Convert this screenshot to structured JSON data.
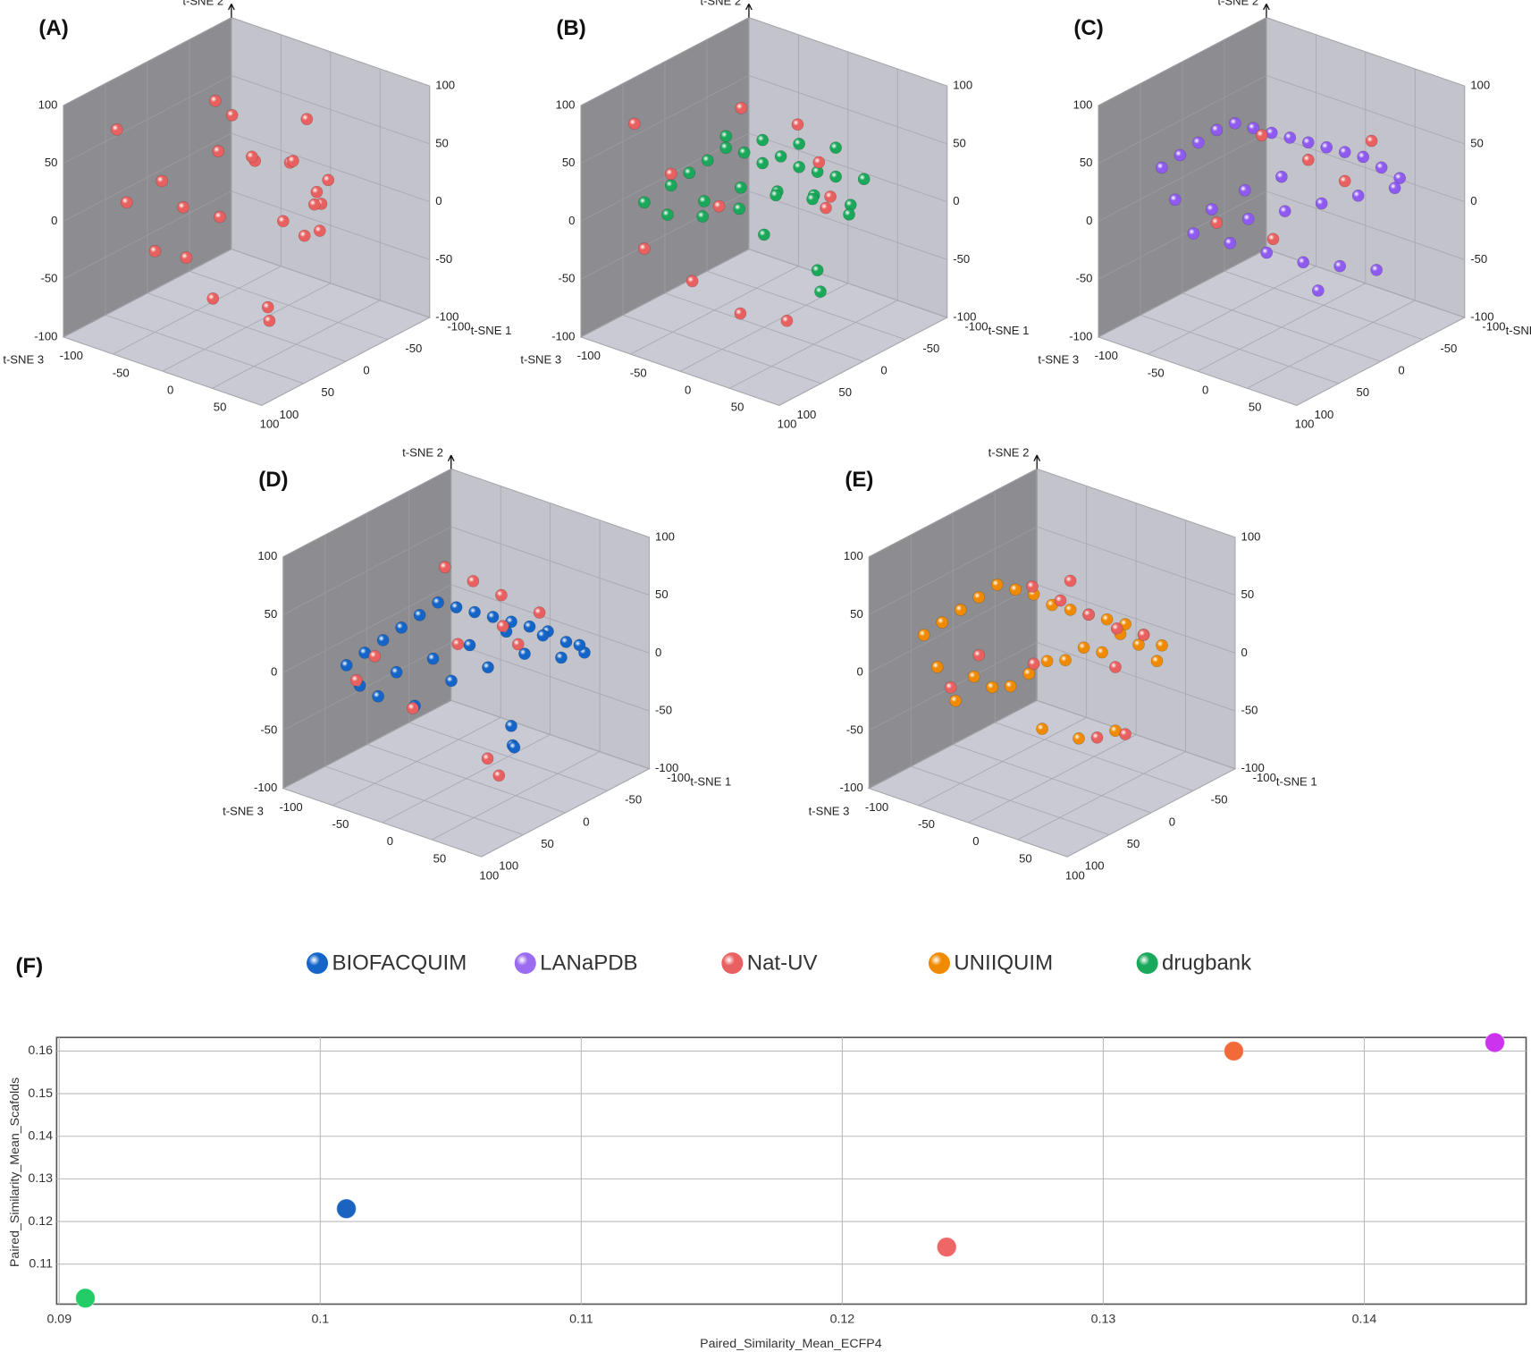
{
  "chart_data": [
    {
      "type": "scatter3d",
      "title": "(A)",
      "x_label": "t-SNE 1",
      "y_label": "t-SNE 2",
      "z_label": "t-SNE 3",
      "xlim": [
        -100,
        100
      ],
      "ylim": [
        -100,
        100
      ],
      "zlim": [
        -100,
        100
      ],
      "xticks": [
        -100,
        -50,
        0,
        50,
        100
      ],
      "yticks": [
        -100,
        -50,
        0,
        50,
        100
      ],
      "zticks": [
        -100,
        -50,
        0,
        50,
        100
      ],
      "series": [
        {
          "name": "Nat-UV",
          "color": "#e8605f",
          "x": [
            -40,
            -20,
            0,
            10,
            30,
            40,
            50,
            60,
            -60,
            -30,
            -10,
            20,
            40,
            -50,
            -70,
            0,
            30,
            40,
            -80,
            -40,
            10,
            20,
            -20,
            50,
            -10
          ],
          "y": [
            60,
            50,
            40,
            30,
            45,
            20,
            10,
            20,
            20,
            10,
            0,
            -10,
            -20,
            -30,
            10,
            -60,
            -70,
            -75,
            70,
            80,
            60,
            0,
            30,
            -10,
            -20
          ],
          "z": [
            -30,
            10,
            -10,
            -40,
            -20,
            -50,
            -30,
            -10,
            30,
            40,
            20,
            -20,
            -40,
            50,
            60,
            40,
            10,
            20,
            60,
            -10,
            -60,
            -60,
            -30,
            -10,
            60
          ]
        }
      ]
    },
    {
      "type": "scatter3d",
      "title": "(B)",
      "x_label": "t-SNE 1",
      "y_label": "t-SNE 2",
      "z_label": "t-SNE 3",
      "xlim": [
        -100,
        100
      ],
      "ylim": [
        -100,
        100
      ],
      "zlim": [
        -100,
        100
      ],
      "xticks": [
        -100,
        -50,
        0,
        50,
        100
      ],
      "yticks": [
        -100,
        -50,
        0,
        50,
        100
      ],
      "zticks": [
        -100,
        -50,
        0,
        50,
        100
      ],
      "series": [
        {
          "name": "drugbank",
          "color": "#1aa85a",
          "x": [
            -60,
            -50,
            -40,
            -30,
            -20,
            -10,
            0,
            10,
            20,
            30,
            -55,
            -35,
            -15,
            5,
            25,
            45,
            -45,
            -25,
            -5,
            15,
            35,
            -30,
            -10,
            10,
            30,
            50,
            0,
            20,
            -70,
            40
          ],
          "y": [
            20,
            30,
            40,
            50,
            45,
            35,
            40,
            30,
            25,
            20,
            0,
            10,
            20,
            15,
            10,
            0,
            -10,
            -5,
            5,
            0,
            -15,
            60,
            55,
            50,
            45,
            20,
            -20,
            -60,
            10,
            -65
          ],
          "z": [
            40,
            30,
            20,
            10,
            0,
            -10,
            -20,
            -30,
            -40,
            -50,
            50,
            30,
            10,
            -10,
            -30,
            -50,
            20,
            0,
            -20,
            -40,
            -60,
            10,
            -10,
            -30,
            -50,
            -60,
            0,
            -40,
            60,
            -20
          ]
        },
        {
          "name": "Nat-UV",
          "color": "#e8605f",
          "x": [
            -40,
            0,
            30,
            50,
            -60,
            -20,
            20,
            -70,
            10,
            40,
            -80,
            -30
          ],
          "y": [
            70,
            60,
            40,
            20,
            30,
            10,
            -10,
            -30,
            -70,
            -75,
            75,
            -50
          ],
          "z": [
            -20,
            -40,
            -30,
            -20,
            40,
            30,
            -50,
            60,
            40,
            20,
            60,
            50
          ]
        }
      ]
    },
    {
      "type": "scatter3d",
      "title": "(C)",
      "x_label": "t-SNE 1",
      "y_label": "t-SNE 2",
      "z_label": "t-SNE 3",
      "xlim": [
        -100,
        100
      ],
      "ylim": [
        -100,
        100
      ],
      "zlim": [
        -100,
        100
      ],
      "xticks": [
        -100,
        -50,
        0,
        50,
        100
      ],
      "yticks": [
        -100,
        -50,
        0,
        50,
        100
      ],
      "zticks": [
        -100,
        -50,
        0,
        50,
        100
      ],
      "series": [
        {
          "name": "LANaPDB",
          "color": "#8e5af0",
          "x": [
            -70,
            -60,
            -50,
            -40,
            -30,
            -20,
            -10,
            0,
            10,
            20,
            30,
            40,
            50,
            60,
            -65,
            -45,
            -25,
            -5,
            15,
            35,
            55,
            -55,
            -35,
            -15,
            5,
            25,
            45,
            -20,
            0,
            20
          ],
          "y": [
            40,
            50,
            60,
            70,
            75,
            70,
            65,
            60,
            55,
            50,
            45,
            40,
            30,
            20,
            10,
            0,
            -10,
            -5,
            0,
            5,
            10,
            -20,
            -30,
            -40,
            -50,
            -55,
            -60,
            20,
            30,
            -70
          ],
          "z": [
            60,
            50,
            40,
            30,
            20,
            10,
            0,
            -10,
            -20,
            -30,
            -40,
            -50,
            -60,
            -70,
            50,
            30,
            10,
            -10,
            -30,
            -50,
            -70,
            40,
            20,
            0,
            -20,
            -40,
            -60,
            20,
            0,
            -20
          ]
        },
        {
          "name": "Nat-UV",
          "color": "#e8605f",
          "x": [
            -20,
            10,
            30,
            -40,
            0,
            40
          ],
          "y": [
            60,
            40,
            20,
            -10,
            -20,
            50
          ],
          "z": [
            0,
            -20,
            -40,
            30,
            10,
            -60
          ]
        }
      ]
    },
    {
      "type": "scatter3d",
      "title": "(D)",
      "x_label": "t-SNE 1",
      "y_label": "t-SNE 2",
      "z_label": "t-SNE 3",
      "xlim": [
        -100,
        100
      ],
      "ylim": [
        -100,
        100
      ],
      "zlim": [
        -100,
        100
      ],
      "xticks": [
        -100,
        -50,
        0,
        50,
        100
      ],
      "yticks": [
        -100,
        -50,
        0,
        50,
        100
      ],
      "zticks": [
        -100,
        -50,
        0,
        50,
        100
      ],
      "series": [
        {
          "name": "BIOFACQUIM",
          "color": "#1565c8",
          "x": [
            -70,
            -60,
            -50,
            -40,
            -30,
            -20,
            -10,
            0,
            10,
            20,
            30,
            40,
            50,
            60,
            -65,
            -45,
            -25,
            -5,
            15,
            35,
            55,
            -55,
            -35,
            -15,
            5,
            25,
            45,
            20,
            30,
            40
          ],
          "y": [
            0,
            10,
            20,
            30,
            40,
            50,
            45,
            40,
            35,
            30,
            25,
            20,
            10,
            0,
            -20,
            -10,
            0,
            10,
            20,
            15,
            5,
            -30,
            -40,
            -20,
            -10,
            0,
            -5,
            -60,
            -70,
            -65
          ],
          "z": [
            60,
            50,
            40,
            30,
            20,
            10,
            0,
            -10,
            -20,
            -30,
            -40,
            -50,
            -60,
            -70,
            50,
            30,
            10,
            -10,
            -30,
            -50,
            -70,
            40,
            20,
            0,
            -20,
            -40,
            -60,
            -30,
            -20,
            -10
          ]
        },
        {
          "name": "Nat-UV",
          "color": "#e8605f",
          "x": [
            -30,
            -10,
            10,
            40,
            -50,
            0,
            20,
            -60,
            30,
            50,
            -20,
            10
          ],
          "y": [
            70,
            60,
            50,
            40,
            10,
            20,
            30,
            -10,
            -70,
            -75,
            -30,
            0
          ],
          "z": [
            -10,
            -20,
            -30,
            -40,
            50,
            10,
            -20,
            60,
            10,
            20,
            40,
            -50
          ]
        }
      ]
    },
    {
      "type": "scatter3d",
      "title": "(E)",
      "x_label": "t-SNE 1",
      "y_label": "t-SNE 2",
      "z_label": "t-SNE 3",
      "xlim": [
        -100,
        100
      ],
      "ylim": [
        -100,
        100
      ],
      "zlim": [
        -100,
        100
      ],
      "xticks": [
        -100,
        -50,
        0,
        50,
        100
      ],
      "yticks": [
        -100,
        -50,
        0,
        50,
        100
      ],
      "zticks": [
        -100,
        -50,
        0,
        50,
        100
      ],
      "series": [
        {
          "name": "UNIIQUIM",
          "color": "#f08a00",
          "x": [
            -70,
            -60,
            -50,
            -40,
            -30,
            -20,
            -10,
            0,
            10,
            20,
            30,
            40,
            50,
            60,
            -65,
            -45,
            -25,
            -5,
            15,
            35,
            55,
            -55,
            -35,
            -15,
            5,
            25,
            45,
            -10,
            10,
            30
          ],
          "y": [
            30,
            40,
            50,
            60,
            70,
            65,
            60,
            50,
            45,
            40,
            35,
            30,
            20,
            10,
            0,
            -10,
            -20,
            0,
            10,
            20,
            -5,
            -30,
            -20,
            -10,
            0,
            5,
            10,
            -60,
            -70,
            -65
          ],
          "z": [
            70,
            60,
            50,
            40,
            30,
            20,
            10,
            0,
            -10,
            -20,
            -30,
            -40,
            -50,
            -60,
            60,
            40,
            20,
            0,
            -20,
            -40,
            -60,
            50,
            30,
            10,
            -10,
            -30,
            -50,
            0,
            -20,
            -40
          ]
        },
        {
          "name": "Nat-UV",
          "color": "#e8605f",
          "x": [
            -20,
            0,
            20,
            40,
            -40,
            -10,
            30,
            50,
            -60,
            20,
            40,
            10
          ],
          "y": [
            60,
            50,
            40,
            30,
            10,
            0,
            -10,
            20,
            -20,
            -70,
            -65,
            70
          ],
          "z": [
            0,
            -10,
            -20,
            -30,
            40,
            10,
            -40,
            -50,
            50,
            -30,
            -40,
            -10
          ]
        }
      ]
    },
    {
      "type": "scatter",
      "title": "(F)",
      "x_label": "Paired_Similarity_Mean_ECFP4",
      "y_label": "Paired_Similarity_Mean_Scafolds",
      "xlim": [
        0.0899,
        0.1462
      ],
      "ylim": [
        0.1006,
        0.1632
      ],
      "xticks": [
        0.09,
        0.1,
        0.11,
        0.12,
        0.13,
        0.14
      ],
      "yticks": [
        0.11,
        0.12,
        0.13,
        0.14,
        0.15,
        0.16
      ],
      "grid": true,
      "series": [
        {
          "name": "BIOFACQUIM",
          "color": "#1565c8",
          "point_color": "#1a63c0",
          "x": [
            0.101
          ],
          "values": [
            0.123
          ]
        },
        {
          "name": "LANaPDB",
          "color": "#9b6cf0",
          "point_color": "#cc33ee",
          "x": [
            0.145
          ],
          "values": [
            0.162
          ]
        },
        {
          "name": "Nat-UV",
          "color": "#e8605f",
          "point_color": "#ee6666",
          "x": [
            0.124
          ],
          "values": [
            0.114
          ]
        },
        {
          "name": "UNIIQUIM",
          "color": "#f08a00",
          "point_color": "#f26a3a",
          "x": [
            0.135
          ],
          "values": [
            0.16
          ]
        },
        {
          "name": "drugbank",
          "color": "#1aa85a",
          "point_color": "#22cc66",
          "x": [
            0.091
          ],
          "values": [
            0.102
          ]
        }
      ]
    }
  ]
}
